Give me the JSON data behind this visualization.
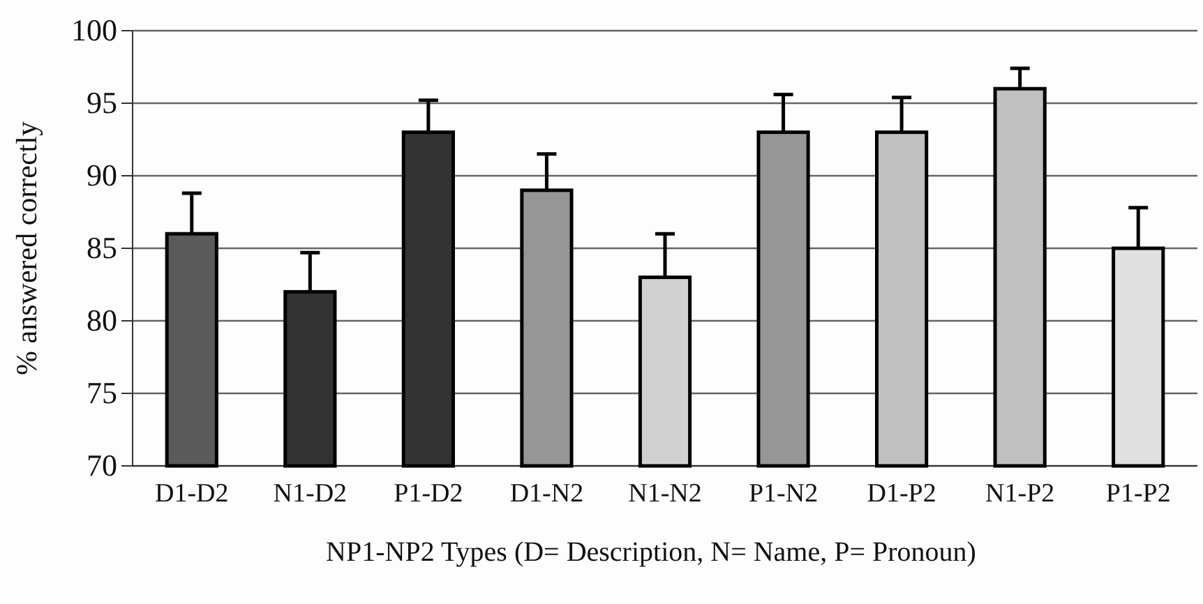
{
  "chart_data": {
    "type": "bar",
    "xlabel": "NP1-NP2 Types (D= Description, N= Name, P= Pronoun)",
    "ylabel": "% answered correctly",
    "categories": [
      "D1-D2",
      "N1-D2",
      "P1-D2",
      "D1-N2",
      "N1-N2",
      "P1-N2",
      "D1-P2",
      "N1-P2",
      "P1-P2"
    ],
    "values": [
      86,
      82,
      93,
      89,
      83,
      93,
      93,
      96,
      85
    ],
    "errors": [
      2.8,
      2.7,
      2.2,
      2.5,
      3.0,
      2.6,
      2.4,
      1.4,
      2.8
    ],
    "colors": [
      "#5a5a5a",
      "#333333",
      "#333333",
      "#969696",
      "#d0d0d0",
      "#969696",
      "#c0c0c0",
      "#c0c0c0",
      "#e0e0e0"
    ],
    "ylim": [
      70,
      100
    ],
    "yticks": [
      70,
      75,
      80,
      85,
      90,
      95,
      100
    ],
    "grid": "y"
  }
}
